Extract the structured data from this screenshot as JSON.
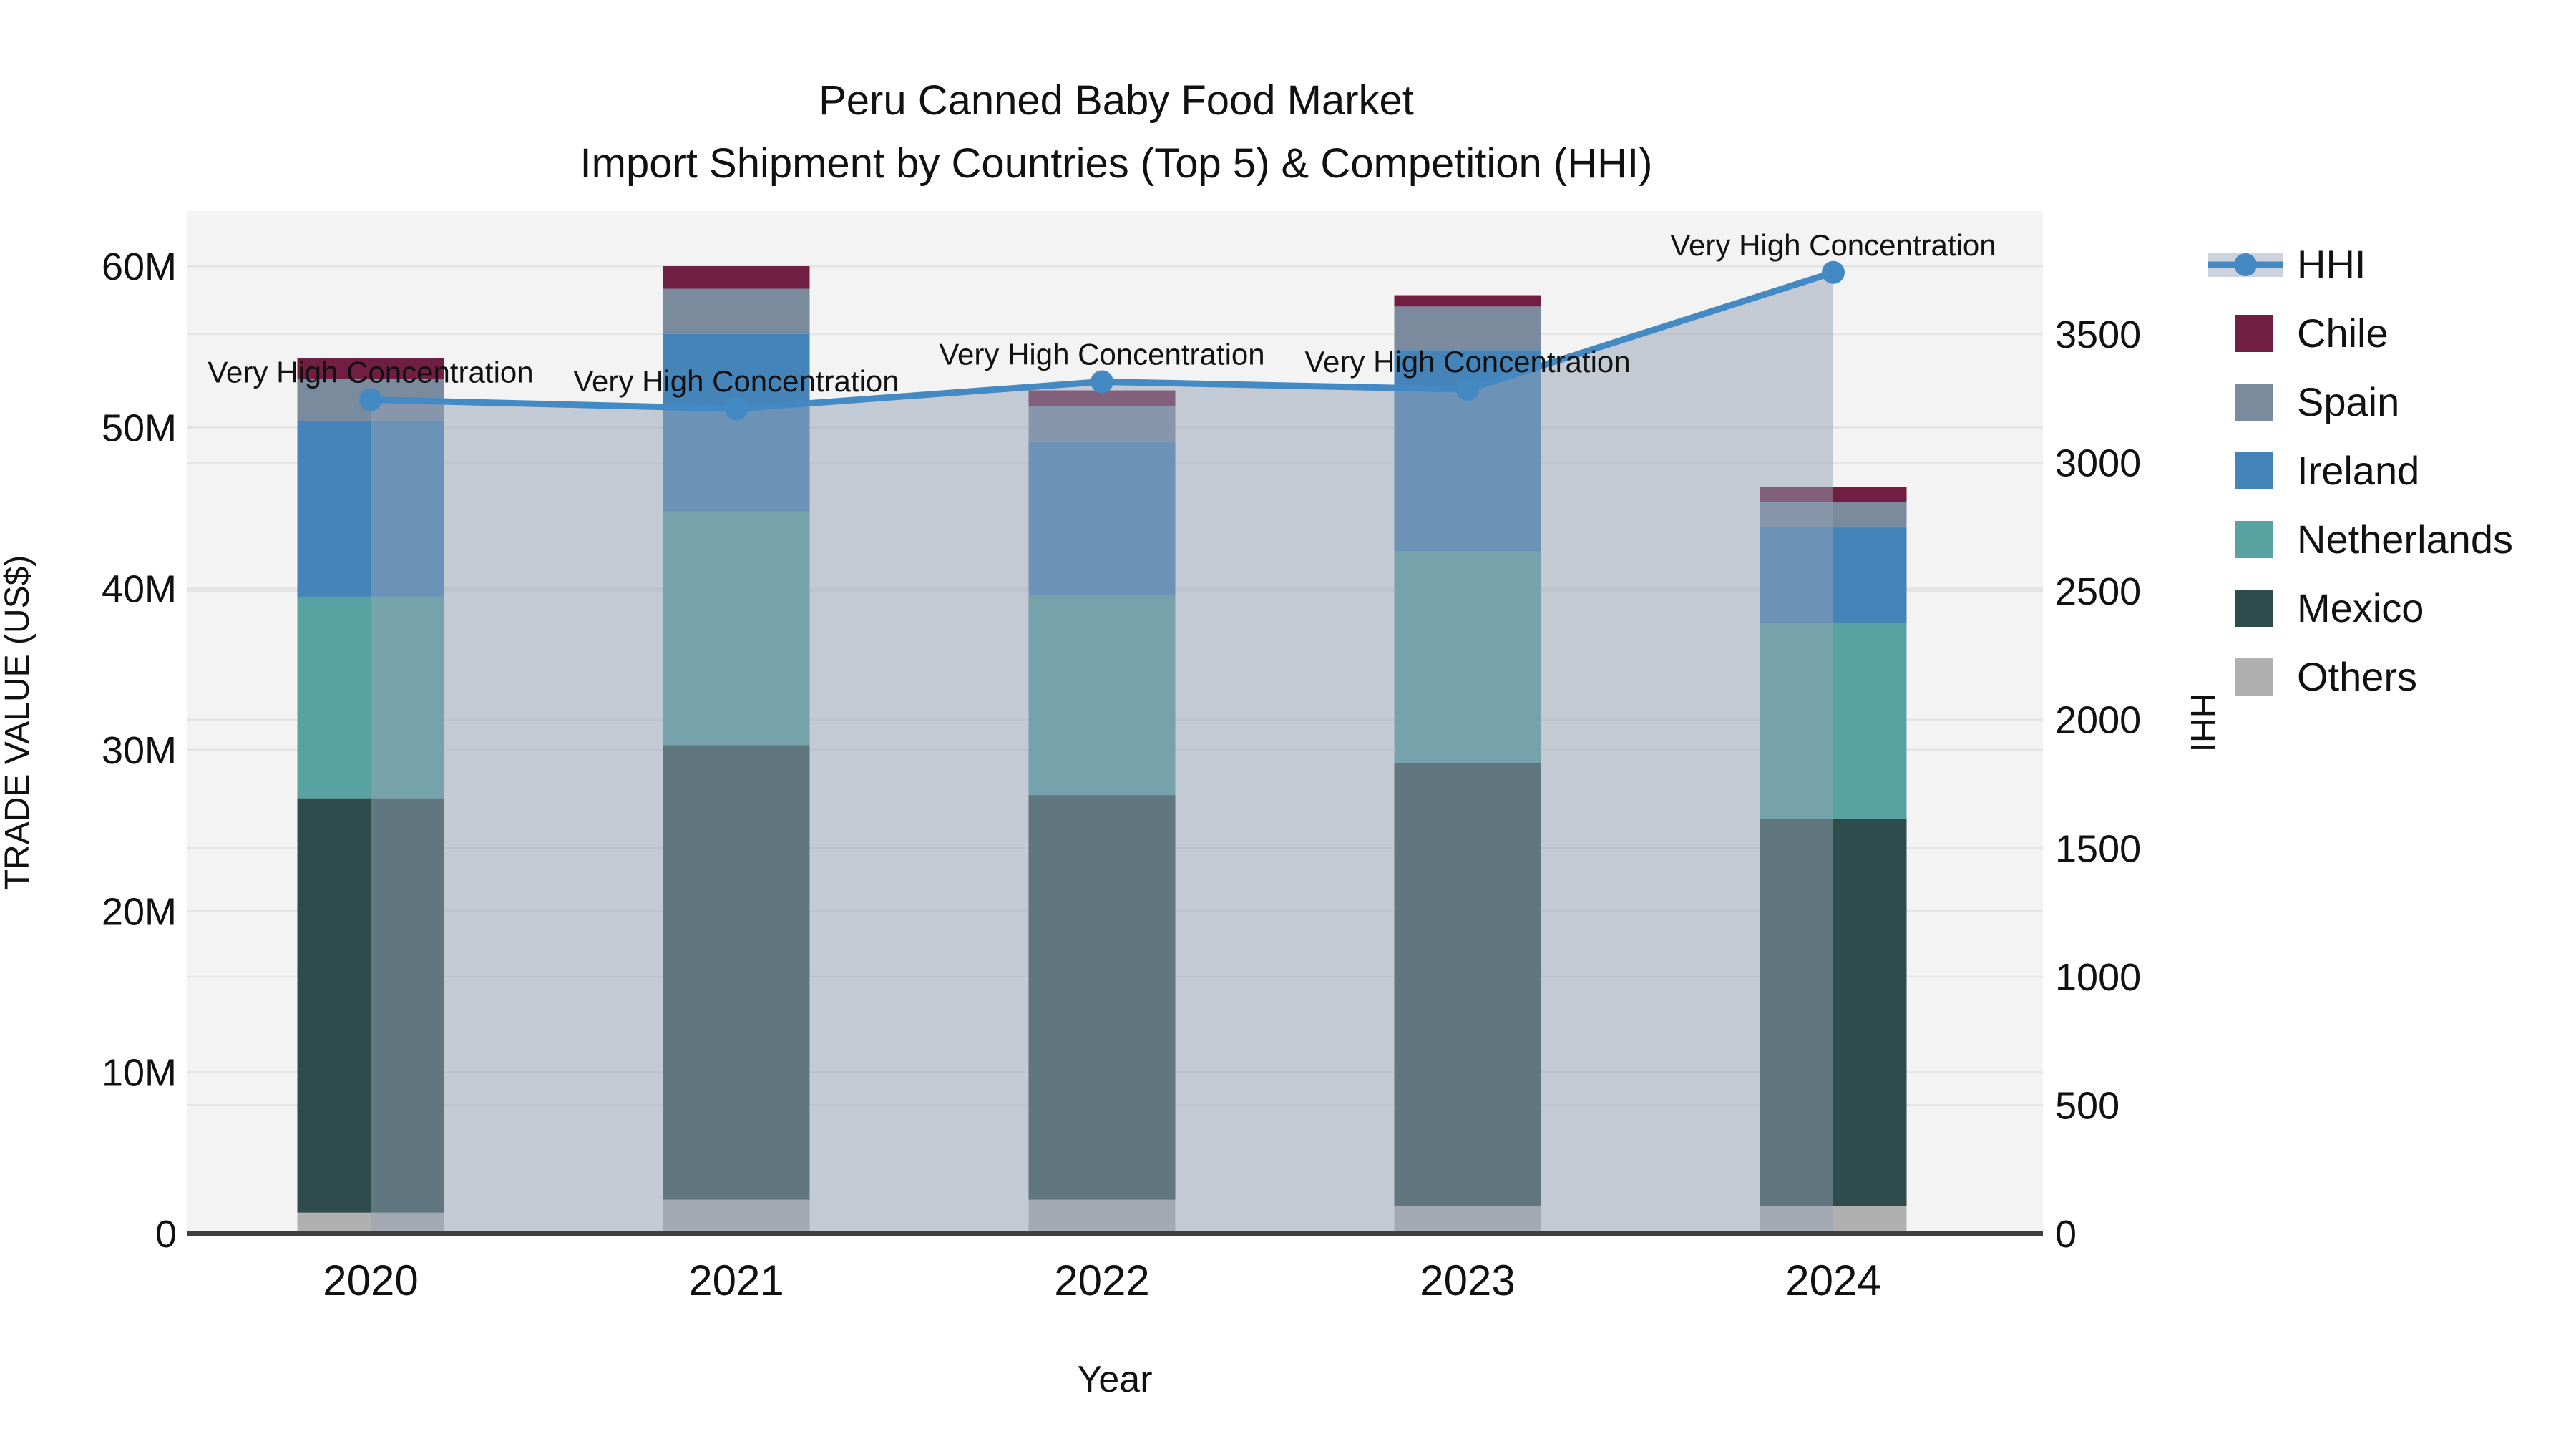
{
  "title": {
    "line1": "Peru Canned Baby Food Market",
    "line2": "Import Shipment by Countries (Top 5) & Competition (HHI)"
  },
  "annotation_text": "Very High Concentration",
  "axes": {
    "left": {
      "label": "TRADE VALUE (US$)",
      "tick_labels": [
        "0",
        "10M",
        "20M",
        "30M",
        "40M",
        "50M",
        "60M"
      ],
      "tick_values": [
        0,
        10,
        20,
        30,
        40,
        50,
        60
      ],
      "max_value": 63.4
    },
    "right": {
      "label": "HHI",
      "tick_labels": [
        "0",
        "500",
        "1000",
        "1500",
        "2000",
        "2500",
        "3000",
        "3500"
      ],
      "tick_values": [
        0,
        500,
        1000,
        1500,
        2000,
        2500,
        3000,
        3500
      ],
      "max_value": 3980
    },
    "x": {
      "label": "Year",
      "categories": [
        "2020",
        "2021",
        "2022",
        "2023",
        "2024"
      ]
    }
  },
  "legend": {
    "items": [
      {
        "label": "HHI",
        "type": "line",
        "color": "#4389C4"
      },
      {
        "label": "Chile",
        "type": "box",
        "color": "#701F42"
      },
      {
        "label": "Spain",
        "type": "box",
        "color": "#7A8B9E"
      },
      {
        "label": "Ireland",
        "type": "box",
        "color": "#4484B8"
      },
      {
        "label": "Netherlands",
        "type": "box",
        "color": "#58A3A1"
      },
      {
        "label": "Mexico",
        "type": "box",
        "color": "#2E4C4B"
      },
      {
        "label": "Others",
        "type": "box",
        "color": "#B0B0B0"
      }
    ]
  },
  "colors": {
    "hhi_line": "#4389C4",
    "hhi_area": "rgba(148,162,182,0.5)",
    "plot_background": "#f3f3f3",
    "gridline": "#e4e4e4",
    "axis_spine": "#3f3f3f",
    "text": "#111111"
  },
  "chart_data": {
    "type": "bar",
    "subtype": "stacked-bars-with-line-overlay",
    "title": "Peru Canned Baby Food Market — Import Shipment by Countries (Top 5) & Competition (HHI)",
    "xlabel": "Year",
    "ylabel_left": "TRADE VALUE (US$)",
    "ylabel_right": "HHI",
    "categories": [
      "2020",
      "2021",
      "2022",
      "2023",
      "2024"
    ],
    "stack_order_bottom_to_top": [
      "Others",
      "Mexico",
      "Netherlands",
      "Ireland",
      "Spain",
      "Chile"
    ],
    "series": [
      {
        "name": "Others",
        "axis": "left",
        "unit": "M US$",
        "values": [
          1.3,
          2.1,
          2.1,
          1.7,
          1.7
        ]
      },
      {
        "name": "Mexico",
        "axis": "left",
        "unit": "M US$",
        "values": [
          25.7,
          28.2,
          25.1,
          27.5,
          24.0
        ]
      },
      {
        "name": "Netherlands",
        "axis": "left",
        "unit": "M US$",
        "values": [
          12.5,
          14.5,
          12.4,
          13.1,
          12.2
        ]
      },
      {
        "name": "Ireland",
        "axis": "left",
        "unit": "M US$",
        "values": [
          10.9,
          11.0,
          9.5,
          12.5,
          5.9
        ]
      },
      {
        "name": "Spain",
        "axis": "left",
        "unit": "M US$",
        "values": [
          2.6,
          2.8,
          2.2,
          2.7,
          1.6
        ]
      },
      {
        "name": "Chile",
        "axis": "left",
        "unit": "M US$",
        "values": [
          1.3,
          1.4,
          1.0,
          0.7,
          0.9
        ]
      },
      {
        "name": "HHI",
        "axis": "right",
        "unit": "index",
        "values": [
          3245,
          3210,
          3315,
          3285,
          3740
        ]
      }
    ],
    "bar_totals_m": [
      54.3,
      60.0,
      52.3,
      58.2,
      46.3
    ],
    "annotations": [
      "Very High Concentration",
      "Very High Concentration",
      "Very High Concentration",
      "Very High Concentration",
      "Very High Concentration"
    ],
    "ylim_left": [
      0,
      63.4
    ],
    "ylim_right": [
      0,
      3980
    ],
    "grid": true,
    "legend_position": "right"
  }
}
